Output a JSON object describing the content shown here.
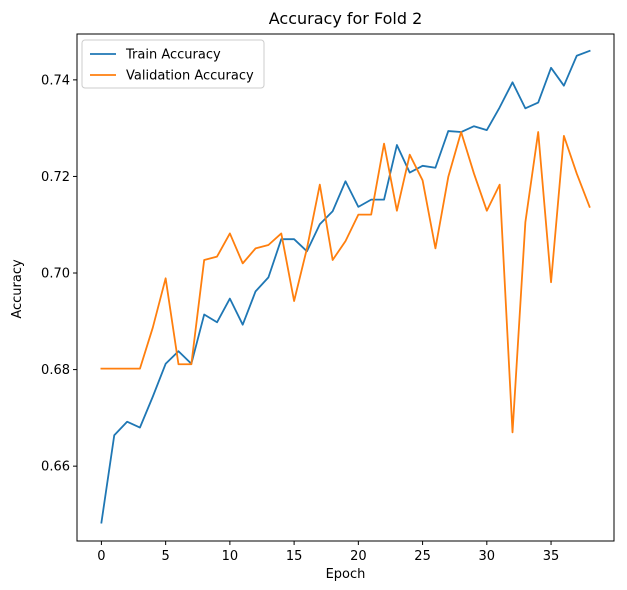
{
  "chart_data": {
    "type": "line",
    "title": "Accuracy for Fold 2",
    "xlabel": "Epoch",
    "ylabel": "Accuracy",
    "xlim": [
      -1.9,
      39.9
    ],
    "ylim": [
      0.6445,
      0.7495
    ],
    "xticks": [
      0,
      5,
      10,
      15,
      20,
      25,
      30,
      35
    ],
    "yticks": [
      0.66,
      0.68,
      0.7,
      0.72,
      0.74
    ],
    "ytick_labels": [
      "0.66",
      "0.68",
      "0.70",
      "0.72",
      "0.74"
    ],
    "grid": false,
    "legend": "top-left",
    "x": [
      0,
      1,
      2,
      3,
      4,
      5,
      6,
      7,
      8,
      9,
      10,
      11,
      12,
      13,
      14,
      15,
      16,
      17,
      18,
      19,
      20,
      21,
      22,
      23,
      24,
      25,
      26,
      27,
      28,
      29,
      30,
      31,
      32,
      33,
      34,
      35,
      36,
      37,
      38
    ],
    "series": [
      {
        "name": "Train Accuracy",
        "color": "#1f77b4",
        "values": [
          0.6483,
          0.6664,
          0.6692,
          0.668,
          0.6744,
          0.6812,
          0.6838,
          0.6812,
          0.6914,
          0.6898,
          0.6947,
          0.6893,
          0.6962,
          0.6991,
          0.707,
          0.707,
          0.7045,
          0.7101,
          0.7128,
          0.719,
          0.7137,
          0.7152,
          0.7152,
          0.7265,
          0.7208,
          0.7222,
          0.7218,
          0.7294,
          0.7292,
          0.7304,
          0.7296,
          0.7343,
          0.7395,
          0.7341,
          0.7353,
          0.7425,
          0.7388,
          0.745,
          0.746
        ]
      },
      {
        "name": "Validation Accuracy",
        "color": "#ff7f0e",
        "values": [
          0.6802,
          0.6802,
          0.6802,
          0.6802,
          0.6887,
          0.6989,
          0.6811,
          0.6811,
          0.7027,
          0.7034,
          0.7082,
          0.702,
          0.7051,
          0.7058,
          0.7082,
          0.6942,
          0.7051,
          0.7183,
          0.7027,
          0.7066,
          0.7121,
          0.7121,
          0.7268,
          0.7129,
          0.7245,
          0.7192,
          0.7051,
          0.7199,
          0.7292,
          0.7206,
          0.7129,
          0.7183,
          0.667,
          0.7105,
          0.7292,
          0.6981,
          0.7284,
          0.7206,
          0.7137
        ]
      }
    ]
  }
}
